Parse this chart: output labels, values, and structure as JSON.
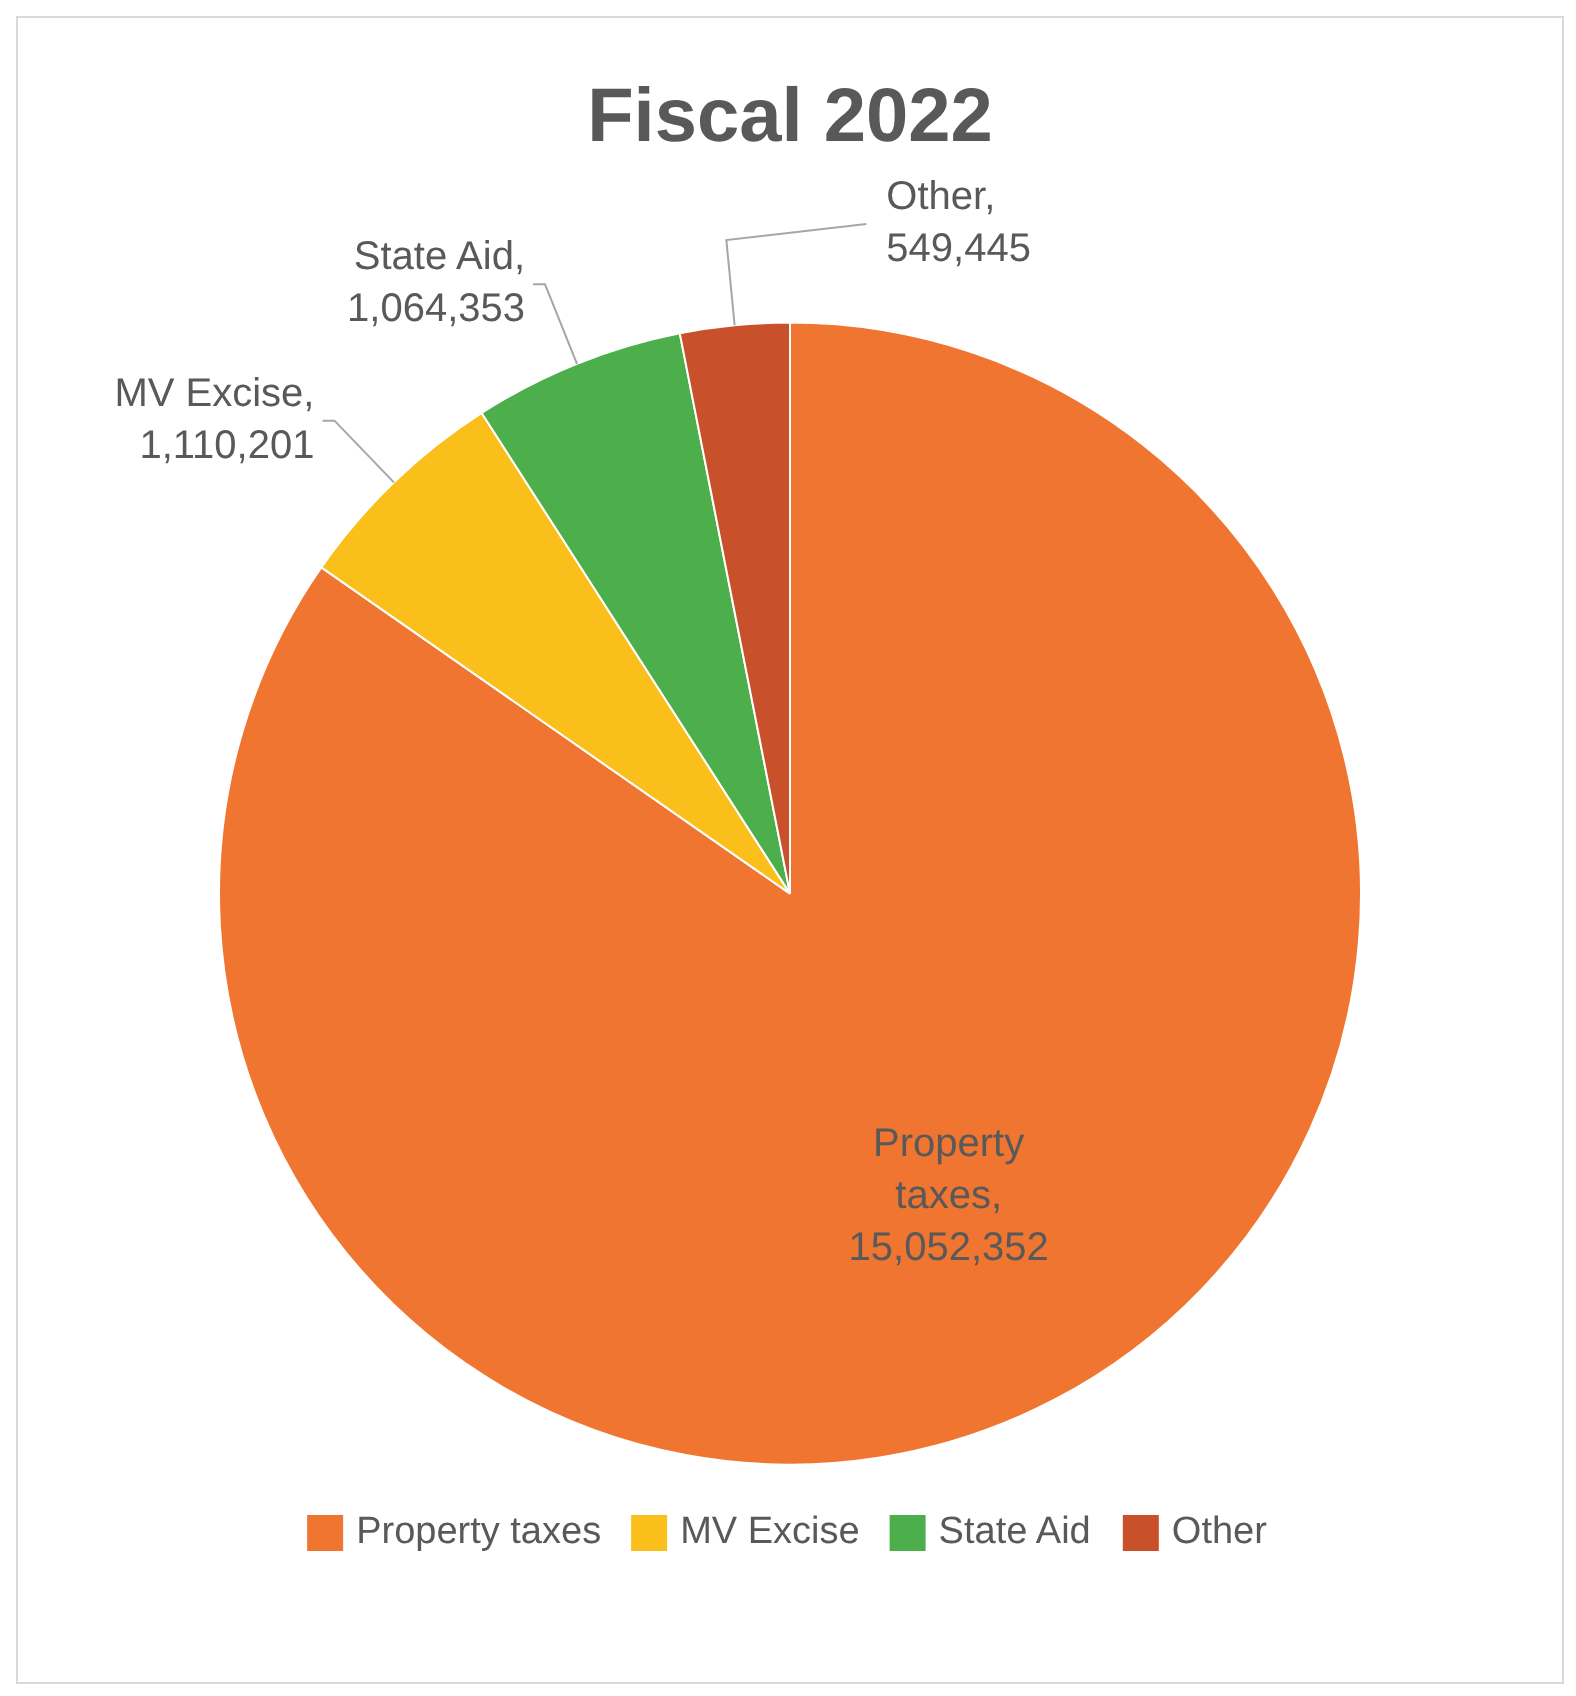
{
  "chart_data": {
    "type": "pie",
    "title": "Fiscal 2022",
    "categories": [
      "Property taxes",
      "MV Excise",
      "State Aid",
      "Other"
    ],
    "values": [
      15052352,
      1110201,
      1064353,
      549445
    ],
    "colors": [
      "#f07530",
      "#fbbf1c",
      "#4caf4c",
      "#c8502a"
    ],
    "value_labels": [
      "Property taxes, 15,052,352",
      "MV Excise, 1,110,201",
      "State Aid, 1,064,353",
      "Other, 549,445"
    ],
    "legend": "bottom"
  }
}
